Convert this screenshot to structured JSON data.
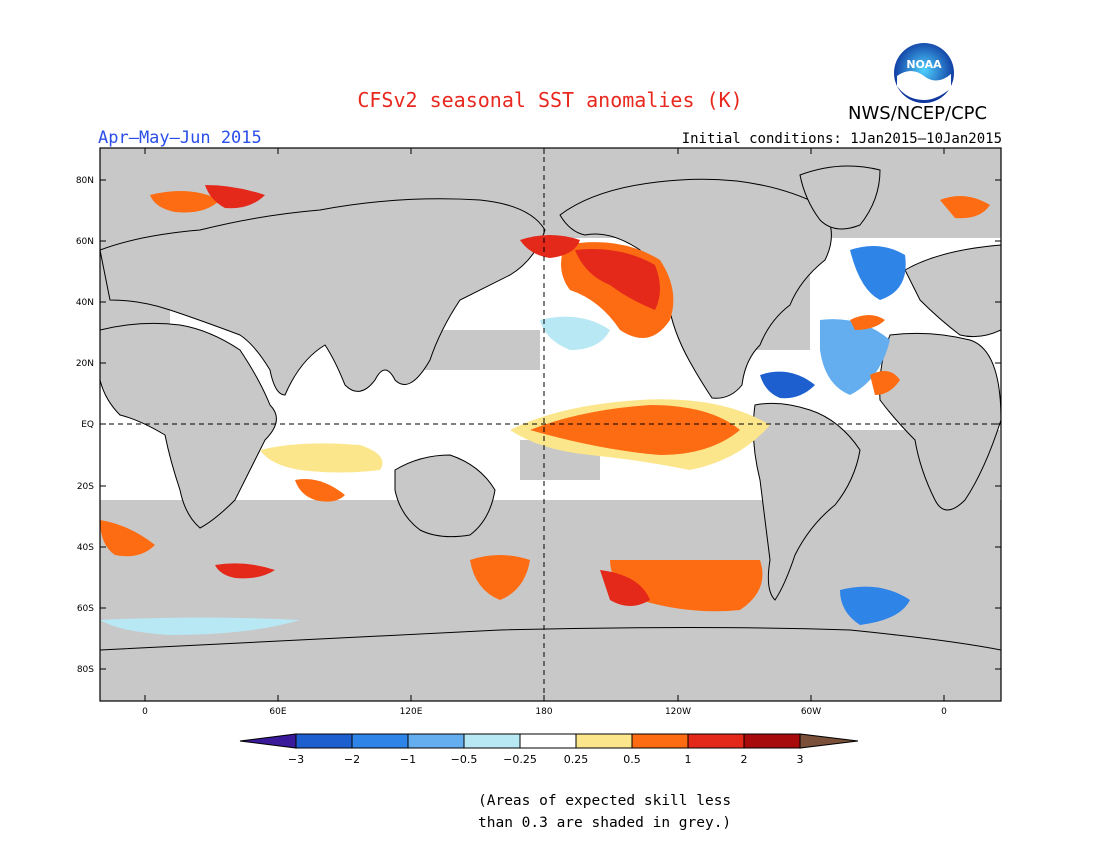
{
  "header": {
    "title": "CFSv2 seasonal SST anomalies (K)",
    "period": "Apr–May–Jun 2015",
    "initial_conditions": "Initial conditions: 1Jan2015–10Jan2015",
    "agency": "NWS/NCEP/CPC",
    "logo_text": "NOAA"
  },
  "map": {
    "lat_ticks": [
      "80N",
      "60N",
      "40N",
      "20N",
      "EQ",
      "20S",
      "40S",
      "60S",
      "80S"
    ],
    "lon_ticks": [
      "0",
      "60E",
      "120E",
      "180",
      "120W",
      "60W",
      "0"
    ],
    "reference_lines": [
      "equator (dashed)",
      "dateline 180 (dashed)"
    ],
    "mask_color": "#c8c8c8"
  },
  "colorbar": {
    "labels": [
      "−3",
      "−2",
      "−1",
      "−0.5",
      "−0.25",
      "0.25",
      "0.5",
      "1",
      "2",
      "3"
    ],
    "colors": [
      "#3a1a9a",
      "#1e5fd0",
      "#2f84e8",
      "#64aef0",
      "#b8e8f4",
      "#ffffff",
      "#fce68c",
      "#fd6c12",
      "#e4281a",
      "#a80b0b",
      "#7a5038"
    ]
  },
  "footnote": {
    "line1": "(Areas of expected skill less",
    "line2": "than 0.3 are shaded in grey.)"
  }
}
